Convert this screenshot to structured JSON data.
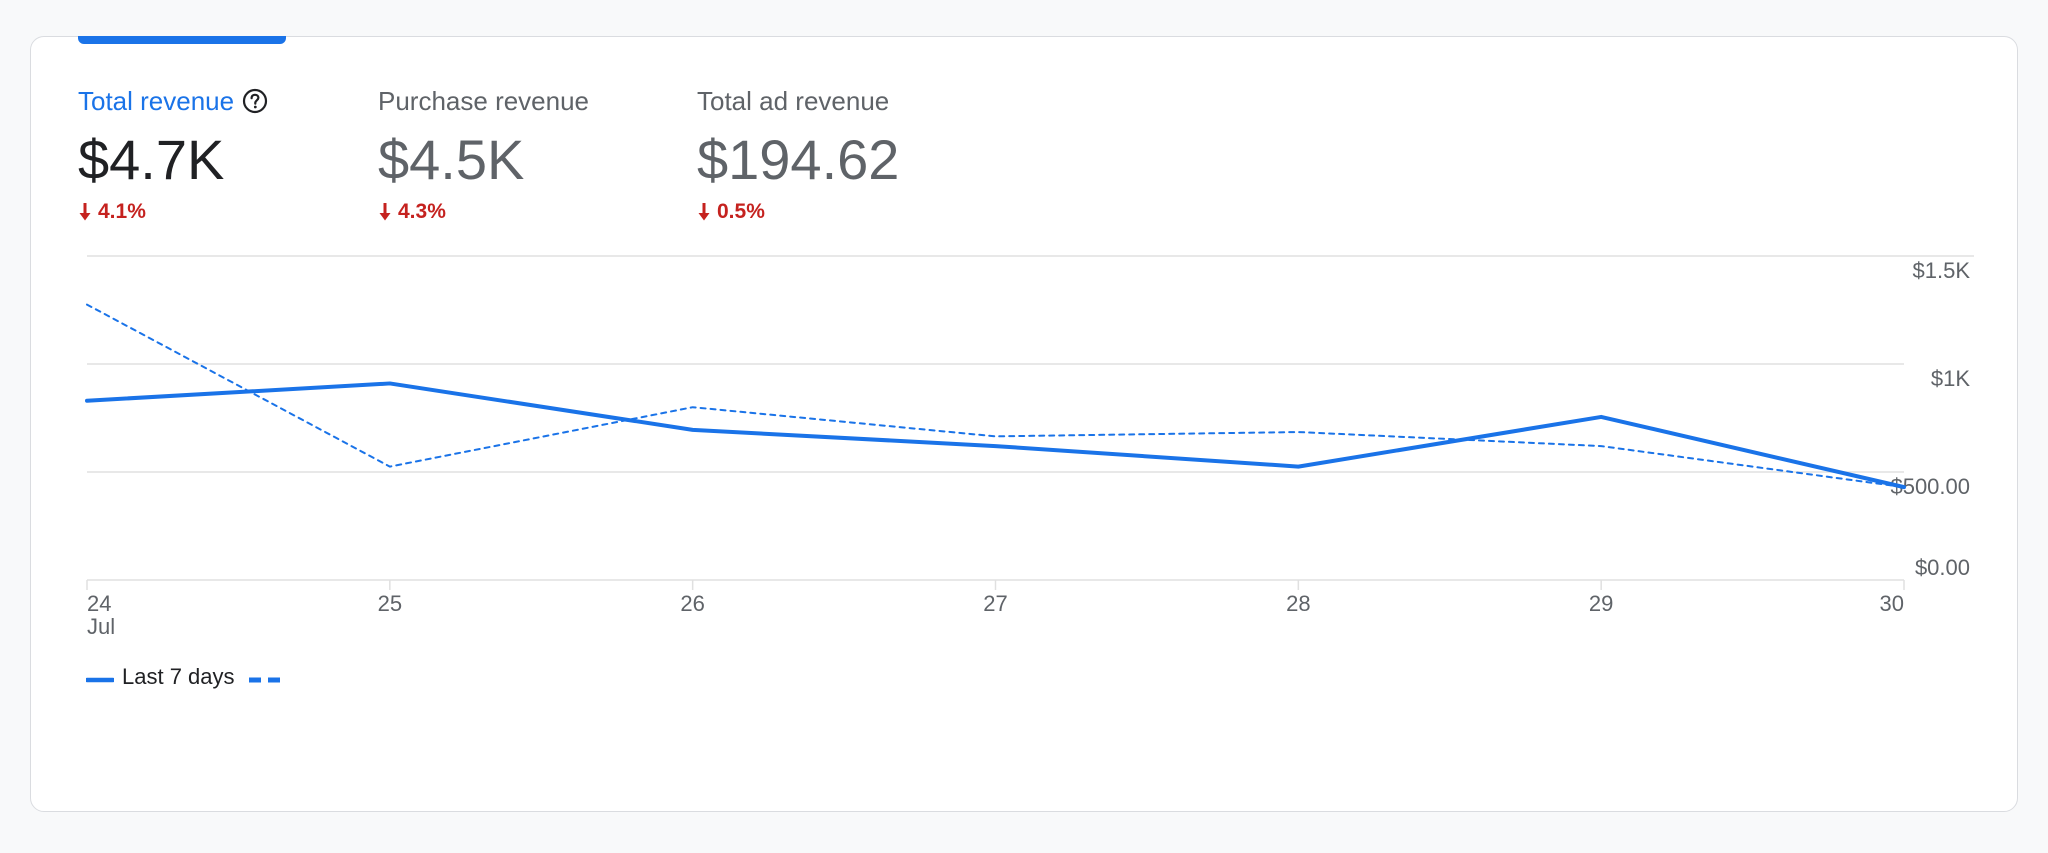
{
  "metrics": [
    {
      "label": "Total revenue",
      "value": "$4.7K",
      "change": "4.1%",
      "direction": "down",
      "active": true
    },
    {
      "label": "Purchase revenue",
      "value": "$4.5K",
      "change": "4.3%",
      "direction": "down",
      "active": false
    },
    {
      "label": "Total ad revenue",
      "value": "$194.62",
      "change": "0.5%",
      "direction": "down",
      "active": false
    }
  ],
  "icons": {
    "help": "help-circle-icon",
    "change": "arrow-down-icon"
  },
  "colors": {
    "accent": "#1a73e8",
    "negative": "#c5221f",
    "muted": "#5f6368",
    "gridline": "#e0e0e0"
  },
  "legend": {
    "current_label": "Last 7 days",
    "comparison_label": ""
  },
  "chart_data": {
    "type": "line",
    "x": [
      "24",
      "25",
      "26",
      "27",
      "28",
      "29",
      "30"
    ],
    "x_sublabel": "Jul",
    "y_ticks": [
      "$0.00",
      "$500.00",
      "$1K",
      "$1.5K"
    ],
    "ylim": [
      0,
      1500
    ],
    "grid": true,
    "series": [
      {
        "name": "Last 7 days",
        "style": "solid",
        "values": [
          830,
          910,
          695,
          620,
          525,
          755,
          430
        ]
      },
      {
        "style": "dashed",
        "values": [
          1275,
          525,
          800,
          665,
          685,
          620,
          430
        ]
      }
    ]
  }
}
